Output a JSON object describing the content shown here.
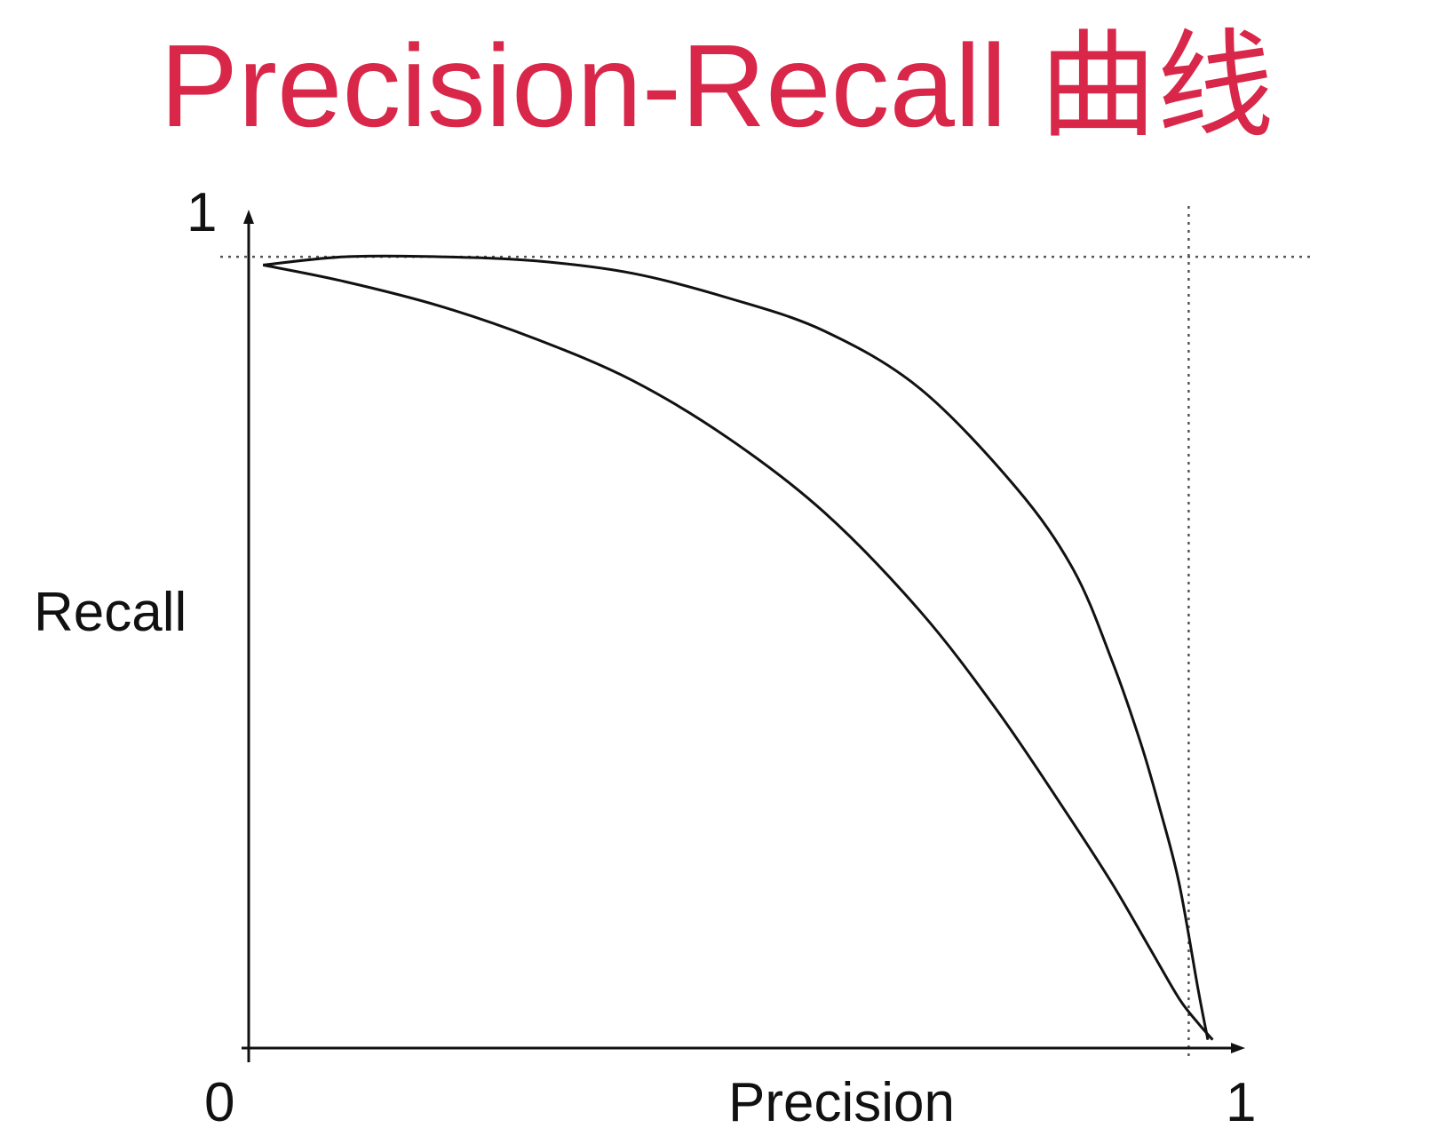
{
  "chart_data": {
    "type": "line",
    "title": "Precision-Recall 曲线",
    "xlabel": "Precision",
    "ylabel": "Recall",
    "xlim": [
      0,
      1
    ],
    "ylim": [
      0,
      1
    ],
    "grid": false,
    "colors": {
      "title": "#d9274a",
      "lines": "#111111",
      "guides": "#555555"
    },
    "x_ticks": [
      {
        "value": 0,
        "label": "0"
      },
      {
        "value": 1,
        "label": "1"
      }
    ],
    "y_ticks": [
      {
        "value": 1,
        "label": "1"
      }
    ],
    "guide_lines": {
      "recall_max": 0.96,
      "precision_max": 0.98
    },
    "series": [
      {
        "x": [
          0.015,
          0.1,
          0.2,
          0.3,
          0.4,
          0.5,
          0.6,
          0.7,
          0.8,
          0.86,
          0.9,
          0.93,
          0.95,
          0.97,
          0.99,
          1.0
        ],
        "y": [
          0.95,
          0.96,
          0.96,
          0.955,
          0.94,
          0.91,
          0.87,
          0.8,
          0.68,
          0.58,
          0.47,
          0.37,
          0.29,
          0.2,
          0.07,
          0.01
        ]
      },
      {
        "x": [
          0.015,
          0.1,
          0.2,
          0.3,
          0.4,
          0.5,
          0.6,
          0.7,
          0.78,
          0.85,
          0.9,
          0.94,
          0.97,
          0.99,
          1.005
        ],
        "y": [
          0.95,
          0.93,
          0.9,
          0.86,
          0.81,
          0.74,
          0.65,
          0.53,
          0.41,
          0.29,
          0.2,
          0.12,
          0.06,
          0.03,
          0.01
        ]
      }
    ]
  }
}
